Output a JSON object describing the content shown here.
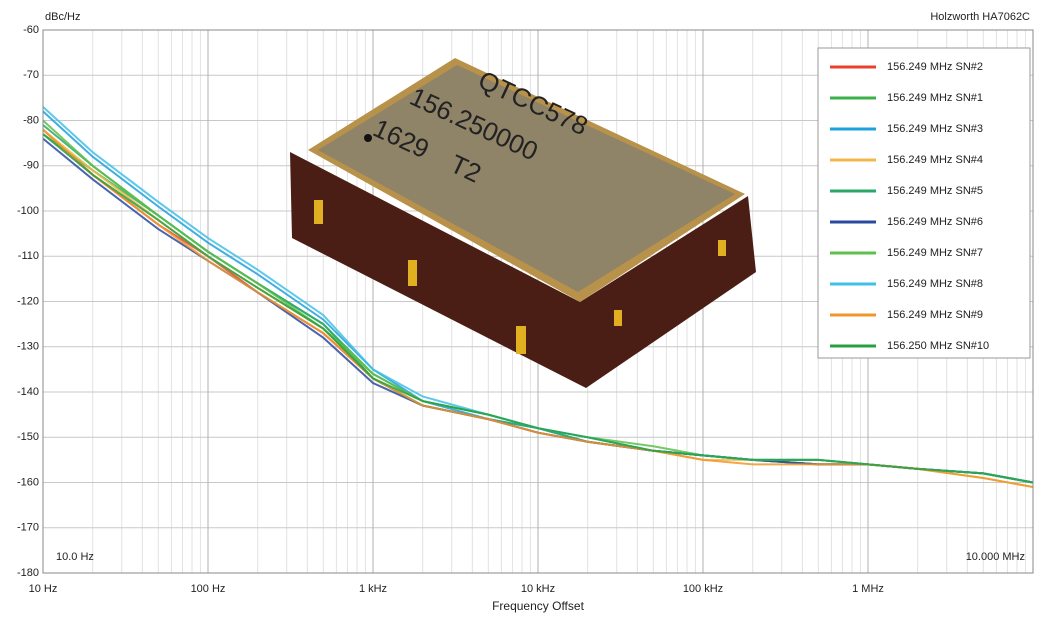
{
  "chart_data": {
    "type": "line",
    "title": "Holzworth HA7062C",
    "ylabel": "dBc/Hz",
    "xlabel": "Frequency Offset",
    "start_label": "10.0 Hz",
    "stop_label": "10.000 MHz",
    "photo_labels": [
      "QTCC578",
      "156.250000",
      "1629",
      "T2"
    ],
    "log_x": true,
    "grid": true,
    "legend": "upper right",
    "xlim": [
      10,
      10000000
    ],
    "ylim": [
      -180,
      -60
    ],
    "xticks": [
      {
        "value": 10,
        "label": "10 Hz"
      },
      {
        "value": 100,
        "label": "100 Hz"
      },
      {
        "value": 1000,
        "label": "1 kHz"
      },
      {
        "value": 10000,
        "label": "10 kHz"
      },
      {
        "value": 100000,
        "label": "100 kHz"
      },
      {
        "value": 1000000,
        "label": "1 MHz"
      }
    ],
    "yticks": [
      -60,
      -70,
      -80,
      -90,
      -100,
      -110,
      -120,
      -130,
      -140,
      -150,
      -160,
      -170,
      -180
    ],
    "x": [
      10,
      20,
      50,
      100,
      200,
      500,
      1000,
      2000,
      5000,
      10000,
      20000,
      50000,
      100000,
      200000,
      500000,
      1000000,
      2000000,
      5000000,
      10000000
    ],
    "series": [
      {
        "name": "156.249 MHz SN#2",
        "color": "#e8402a",
        "values": [
          -82,
          -92,
          -103,
          -110,
          -118,
          -127,
          -137,
          -143,
          -146,
          -149,
          -151,
          -153,
          -154,
          -155,
          -156,
          -156,
          -157,
          -158,
          -160
        ]
      },
      {
        "name": "156.249 MHz SN#1",
        "color": "#3cb04a",
        "values": [
          -83,
          -91,
          -101,
          -109,
          -116,
          -125,
          -136,
          -142,
          -145,
          -148,
          -150,
          -153,
          -154,
          -155,
          -155,
          -156,
          -157,
          -158,
          -160
        ]
      },
      {
        "name": "156.249 MHz SN#3",
        "color": "#1ea0dc",
        "values": [
          -78,
          -88,
          -99,
          -107,
          -114,
          -124,
          -135,
          -142,
          -146,
          -148,
          -151,
          -153,
          -154,
          -155,
          -156,
          -156,
          -157,
          -158,
          -160
        ]
      },
      {
        "name": "156.249 MHz SN#4",
        "color": "#f0b84a",
        "values": [
          -82,
          -91,
          -102,
          -110,
          -117,
          -126,
          -137,
          -143,
          -146,
          -149,
          -151,
          -153,
          -155,
          -155,
          -156,
          -156,
          -157,
          -159,
          -161
        ]
      },
      {
        "name": "156.249 MHz SN#5",
        "color": "#2aa86a",
        "values": [
          -81,
          -90,
          -101,
          -109,
          -116,
          -125,
          -137,
          -143,
          -146,
          -148,
          -151,
          -153,
          -154,
          -155,
          -156,
          -156,
          -157,
          -158,
          -160
        ]
      },
      {
        "name": "156.249 MHz SN#6",
        "color": "#2a4aa0",
        "values": [
          -84,
          -93,
          -104,
          -111,
          -118,
          -128,
          -138,
          -143,
          -146,
          -149,
          -151,
          -153,
          -154,
          -155,
          -156,
          -156,
          -157,
          -158,
          -160
        ]
      },
      {
        "name": "156.249 MHz SN#7",
        "color": "#5cc04a",
        "values": [
          -80,
          -90,
          -101,
          -109,
          -116,
          -126,
          -136,
          -142,
          -145,
          -148,
          -150,
          -152,
          -154,
          -155,
          -155,
          -156,
          -157,
          -158,
          -160
        ]
      },
      {
        "name": "156.249 MHz SN#8",
        "color": "#40c0e8",
        "values": [
          -77,
          -87,
          -98,
          -106,
          -113,
          -123,
          -135,
          -141,
          -145,
          -148,
          -150,
          -153,
          -154,
          -155,
          -155,
          -156,
          -157,
          -158,
          -160
        ]
      },
      {
        "name": "156.249 MHz SN#9",
        "color": "#f0962a",
        "values": [
          -82,
          -92,
          -103,
          -111,
          -118,
          -127,
          -137,
          -143,
          -146,
          -149,
          -151,
          -153,
          -155,
          -156,
          -156,
          -156,
          -157,
          -159,
          -161
        ]
      },
      {
        "name": "156.250 MHz SN#10",
        "color": "#28a040",
        "values": [
          -83,
          -92,
          -102,
          -110,
          -117,
          -126,
          -137,
          -142,
          -145,
          -148,
          -150,
          -153,
          -154,
          -155,
          -155,
          -156,
          -157,
          -158,
          -160
        ]
      }
    ]
  }
}
